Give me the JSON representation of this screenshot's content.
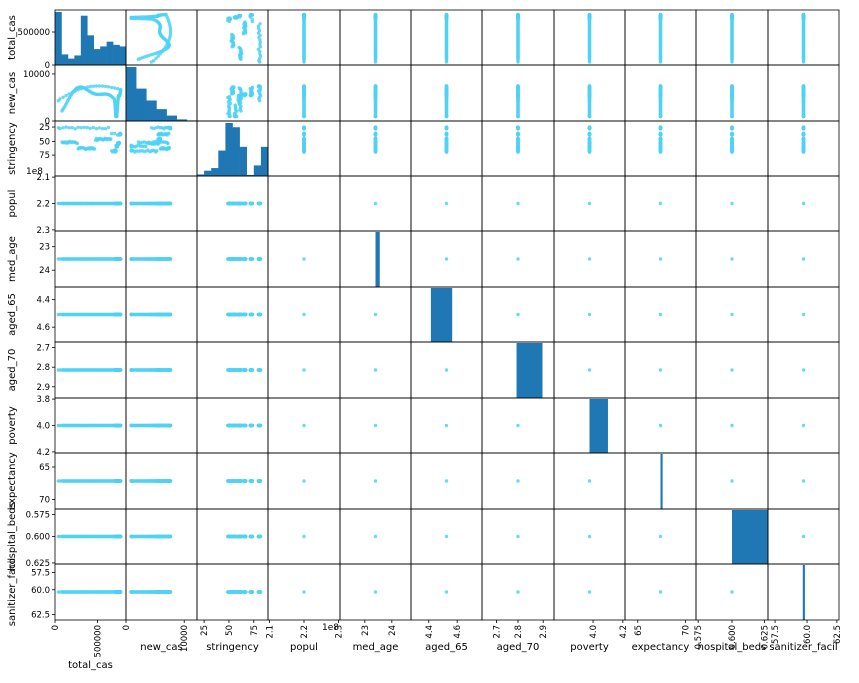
{
  "chart_data": {
    "type": "scatter_matrix",
    "variables": [
      "total_cas",
      "new_cas",
      "stringency",
      "popul",
      "med_age",
      "aged_65",
      "aged_70",
      "poverty",
      "expectancy",
      "hospital_beds",
      "sanitizer_facil"
    ],
    "row_labels": [
      "total_cas",
      "new_cas",
      "stringency",
      "popul",
      "med_age",
      "aged_65",
      "aged_70",
      "poverty",
      "expectancy",
      "hospital_beds",
      "sanitizer_facil"
    ],
    "colors": {
      "scatter": "#4fd2f5",
      "hist": "#1f77b4",
      "axes": "#000000"
    },
    "offset_labels": {
      "row3": "1e8",
      "col3": "1e8"
    },
    "y_ticks": [
      [
        {
          "v": 0,
          "l": "0"
        },
        {
          "v": 500000,
          "l": "500000"
        }
      ],
      [
        {
          "v": 0,
          "l": "0"
        },
        {
          "v": 10000,
          "l": "10000"
        }
      ],
      [
        {
          "v": 25,
          "l": "25"
        },
        {
          "v": 50,
          "l": "50"
        },
        {
          "v": 75,
          "l": "75"
        }
      ],
      [
        {
          "v": 2.1,
          "l": "2.1"
        },
        {
          "v": 2.2,
          "l": "2.2"
        },
        {
          "v": 2.3,
          "l": "2.3"
        }
      ],
      [
        {
          "v": 23,
          "l": "23"
        },
        {
          "v": 24,
          "l": "24"
        }
      ],
      [
        {
          "v": 4.4,
          "l": "4.4"
        },
        {
          "v": 4.6,
          "l": "4.6"
        }
      ],
      [
        {
          "v": 2.7,
          "l": "2.7"
        },
        {
          "v": 2.8,
          "l": "2.8"
        },
        {
          "v": 2.9,
          "l": "2.9"
        }
      ],
      [
        {
          "v": 3.8,
          "l": "3.8"
        },
        {
          "v": 4.0,
          "l": "4.0"
        },
        {
          "v": 4.2,
          "l": "4.2"
        }
      ],
      [
        {
          "v": 65,
          "l": "65"
        },
        {
          "v": 70,
          "l": "70"
        }
      ],
      [
        {
          "v": 0.575,
          "l": "0.575"
        },
        {
          "v": 0.6,
          "l": "0.600"
        },
        {
          "v": 0.625,
          "l": "0.625"
        }
      ],
      [
        {
          "v": 57.5,
          "l": "57.5"
        },
        {
          "v": 60,
          "l": "60.0"
        },
        {
          "v": 62.5,
          "l": "62.5"
        }
      ]
    ],
    "x_ticks": [
      [
        {
          "v": 0,
          "l": "0"
        },
        {
          "v": 500000,
          "l": "500000"
        }
      ],
      [
        {
          "v": 0,
          "l": "0"
        },
        {
          "v": 10000,
          "l": "10000"
        }
      ],
      [
        {
          "v": 25,
          "l": "25"
        },
        {
          "v": 50,
          "l": "50"
        },
        {
          "v": 75,
          "l": "75"
        }
      ],
      [
        {
          "v": 2.1,
          "l": "2.1"
        },
        {
          "v": 2.2,
          "l": "2.2"
        },
        {
          "v": 2.3,
          "l": "2.3"
        }
      ],
      [
        {
          "v": 23,
          "l": "23"
        },
        {
          "v": 24,
          "l": "24"
        }
      ],
      [
        {
          "v": 4.4,
          "l": "4.4"
        },
        {
          "v": 4.6,
          "l": "4.6"
        }
      ],
      [
        {
          "v": 2.7,
          "l": "2.7"
        },
        {
          "v": 2.8,
          "l": "2.8"
        },
        {
          "v": 2.9,
          "l": "2.9"
        }
      ],
      [
        {
          "v": 4.0,
          "l": "4.0"
        },
        {
          "v": 4.2,
          "l": "4.2"
        }
      ],
      [
        {
          "v": 65,
          "l": "65"
        },
        {
          "v": 70,
          "l": "70"
        }
      ],
      [
        {
          "v": 0.575,
          "l": "0.575"
        },
        {
          "v": 0.6,
          "l": "0.600"
        },
        {
          "v": 0.625,
          "l": "0.625"
        }
      ],
      [
        {
          "v": 57.5,
          "l": "57.5"
        },
        {
          "v": 60,
          "l": "60.0"
        },
        {
          "v": 62.5,
          "l": "62.5"
        }
      ]
    ],
    "diag_hist": [
      [
        1.0,
        0.2,
        0.12,
        0.18,
        0.93,
        0.56,
        0.3,
        0.35,
        0.44,
        0.38,
        0.35
      ],
      [
        1.0,
        0.6,
        0.38,
        0.22,
        0.1,
        0.03,
        0.01
      ],
      [
        0.03,
        0.1,
        0.15,
        0.48,
        1.0,
        0.92,
        0.55,
        0.02,
        0.2,
        0.55
      ]
    ],
    "diag_bars": [
      {
        "var": 4,
        "from": 0.5,
        "to": 0.56,
        "h": 1.0
      },
      {
        "var": 5,
        "from": 0.28,
        "to": 0.58,
        "h": 1.0
      },
      {
        "var": 6,
        "from": 0.48,
        "to": 0.84,
        "h": 1.0
      },
      {
        "var": 7,
        "from": 0.5,
        "to": 0.76,
        "h": 1.0
      },
      {
        "var": 8,
        "from": 0.5,
        "to": 0.53,
        "h": 1.0
      },
      {
        "var": 9,
        "from": 0.5,
        "to": 1.0,
        "h": 1.0
      },
      {
        "var": 10,
        "from": 0.49,
        "to": 0.52,
        "h": 1.0
      }
    ]
  }
}
